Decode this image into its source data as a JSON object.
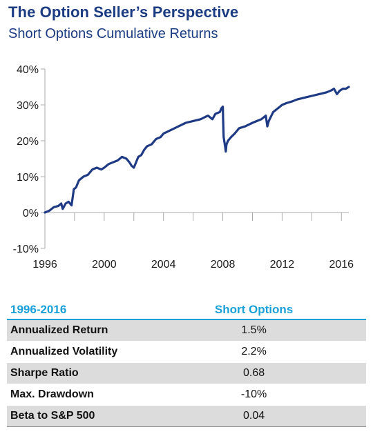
{
  "header": {
    "title": "The Option Seller’s Perspective",
    "subtitle": "Short Options Cumulative Returns"
  },
  "colors": {
    "title": "#1b3c82",
    "line": "#1f3a85",
    "accent": "#1aa0d8",
    "row_shade": "#dcdcdc"
  },
  "chart_data": {
    "type": "line",
    "title": "Short Options Cumulative Returns",
    "xlabel": "",
    "ylabel": "",
    "xlim": [
      1996,
      2016.5
    ],
    "ylim": [
      -10,
      40
    ],
    "x_ticks": [
      1996,
      2000,
      2004,
      2008,
      2012,
      2016
    ],
    "y_ticks": [
      -10,
      0,
      10,
      20,
      30,
      40
    ],
    "y_tick_labels": [
      "-10%",
      "0%",
      "10%",
      "20%",
      "30%",
      "40%"
    ],
    "grid": false,
    "legend": "none",
    "series": [
      {
        "x": [
          1996.0,
          1996.3,
          1996.6,
          1996.9,
          1997.1,
          1997.2,
          1997.4,
          1997.6,
          1997.8,
          1997.95,
          1998.1,
          1998.3,
          1998.6,
          1998.9,
          1999.2,
          1999.5,
          1999.8,
          2000.0,
          2000.3,
          2000.6,
          2000.9,
          2001.2,
          2001.5,
          2001.7,
          2001.85,
          2002.0,
          2002.15,
          2002.3,
          2002.5,
          2002.7,
          2002.9,
          2003.2,
          2003.5,
          2003.8,
          2004.0,
          2004.5,
          2005.0,
          2005.5,
          2006.0,
          2006.5,
          2007.0,
          2007.3,
          2007.5,
          2007.8,
          2007.9,
          2008.0,
          2008.02,
          2008.06,
          2008.15,
          2008.2,
          2008.25,
          2008.35,
          2008.55,
          2008.8,
          2009.1,
          2009.5,
          2010.0,
          2010.3,
          2010.6,
          2010.9,
          2011.0,
          2011.1,
          2011.4,
          2011.7,
          2012.0,
          2012.3,
          2012.7,
          2013.0,
          2013.5,
          2014.0,
          2014.5,
          2015.0,
          2015.3,
          2015.5,
          2015.7,
          2015.9,
          2016.1,
          2016.3,
          2016.5
        ],
        "values": [
          0.0,
          0.5,
          1.5,
          1.8,
          2.5,
          1.0,
          2.5,
          3.0,
          2.0,
          6.5,
          7.0,
          9.0,
          10.0,
          10.5,
          12.0,
          12.5,
          12.0,
          12.5,
          13.5,
          14.0,
          14.5,
          15.5,
          15.0,
          14.0,
          13.0,
          12.5,
          14.0,
          15.5,
          16.0,
          17.5,
          18.5,
          19.0,
          20.5,
          21.0,
          22.0,
          23.0,
          24.0,
          25.0,
          25.5,
          26.0,
          27.0,
          26.0,
          27.5,
          28.0,
          29.0,
          29.5,
          26.0,
          21.0,
          18.5,
          17.0,
          19.0,
          20.0,
          21.0,
          22.0,
          23.5,
          24.0,
          25.0,
          25.5,
          26.0,
          27.0,
          24.0,
          25.5,
          28.0,
          29.0,
          30.0,
          30.5,
          31.0,
          31.5,
          32.0,
          32.5,
          33.0,
          33.5,
          34.0,
          34.5,
          33.0,
          34.0,
          34.5,
          34.5,
          35.0
        ]
      }
    ]
  },
  "table": {
    "header": {
      "period": "1996-2016",
      "column": "Short Options"
    },
    "rows": [
      {
        "label": "Annualized Return",
        "value": "1.5%"
      },
      {
        "label": "Annualized  Volatility",
        "value": "2.2%"
      },
      {
        "label": "Sharpe Ratio",
        "value": "0.68"
      },
      {
        "label": "Max. Drawdown",
        "value": "-10%"
      },
      {
        "label": "Beta to S&P 500",
        "value": "0.04"
      }
    ]
  }
}
